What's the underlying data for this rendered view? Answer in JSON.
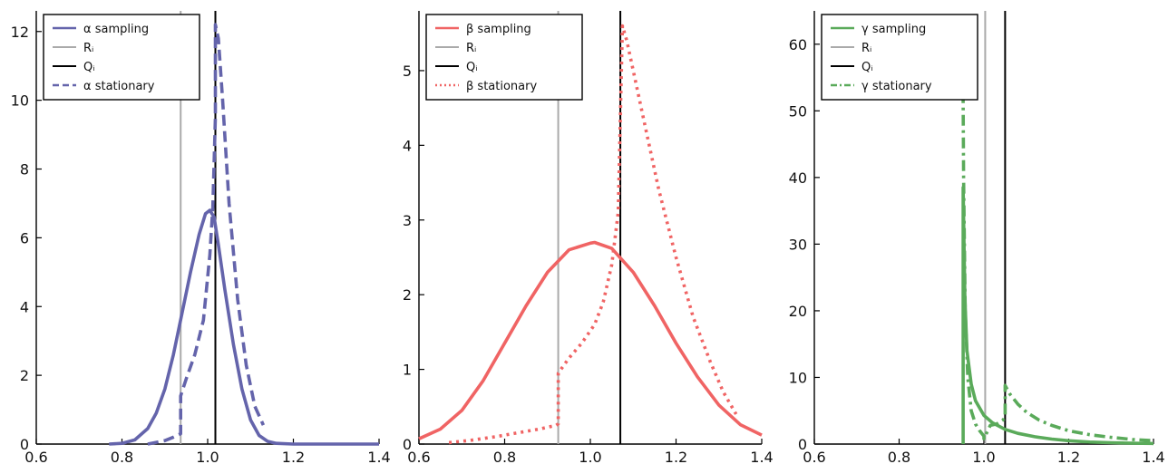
{
  "chart_data": [
    {
      "type": "line",
      "title": "",
      "xlabel": "",
      "ylabel": "",
      "xlim": [
        0.6,
        1.4
      ],
      "ylim": [
        0,
        12.6
      ],
      "xticks": [
        0.6,
        0.8,
        1.0,
        1.2,
        1.4
      ],
      "xtick_labels": [
        "0.6",
        "0.8",
        "1.0",
        "1.2",
        "1.4"
      ],
      "yticks": [
        0,
        2,
        4,
        6,
        8,
        10,
        12
      ],
      "ytick_labels": [
        "0",
        "2",
        "4",
        "6",
        "8",
        "10",
        "12"
      ],
      "grid": false,
      "legend_position": "top-left",
      "series": [
        {
          "name": "α sampling",
          "style": "solid",
          "color": "#6464ab",
          "x": [
            0.77,
            0.8,
            0.83,
            0.86,
            0.88,
            0.9,
            0.92,
            0.94,
            0.96,
            0.98,
            0.995,
            1.005,
            1.015,
            1.025,
            1.04,
            1.06,
            1.08,
            1.1,
            1.12,
            1.14,
            1.16,
            1.2,
            1.3,
            1.4
          ],
          "y": [
            0.0,
            0.02,
            0.12,
            0.45,
            0.9,
            1.6,
            2.6,
            3.8,
            5.0,
            6.1,
            6.7,
            6.8,
            6.6,
            5.8,
            4.5,
            2.9,
            1.6,
            0.7,
            0.25,
            0.08,
            0.02,
            0.0,
            0.0,
            0.0
          ]
        },
        {
          "name": "Rᵢ",
          "style": "vline",
          "color": "#aaaaaa",
          "x": [
            0.937
          ]
        },
        {
          "name": "Qᵢ",
          "style": "vline",
          "color": "#000000",
          "x": [
            1.018
          ]
        },
        {
          "name": "α stationary",
          "style": "dashed",
          "color": "#6464ab",
          "x": [
            0.86,
            0.88,
            0.9,
            0.92,
            0.937,
            0.937,
            0.95,
            0.97,
            0.99,
            1.005,
            1.012,
            1.018,
            1.018,
            1.025,
            1.035,
            1.05,
            1.07,
            1.09,
            1.11,
            1.13
          ],
          "y": [
            0.0,
            0.05,
            0.1,
            0.2,
            0.3,
            1.4,
            1.9,
            2.6,
            3.6,
            5.5,
            6.9,
            9.5,
            12.2,
            11.8,
            10.0,
            7.0,
            4.2,
            2.3,
            1.1,
            0.55
          ]
        }
      ]
    },
    {
      "type": "line",
      "title": "",
      "xlabel": "",
      "ylabel": "",
      "xlim": [
        0.6,
        1.4
      ],
      "ylim": [
        0,
        5.8
      ],
      "xticks": [
        0.6,
        0.8,
        1.0,
        1.2,
        1.4
      ],
      "xtick_labels": [
        "0.6",
        "0.8",
        "1.0",
        "1.2",
        "1.4"
      ],
      "yticks": [
        0,
        1,
        2,
        3,
        4,
        5
      ],
      "ytick_labels": [
        "0",
        "1",
        "2",
        "3",
        "4",
        "5"
      ],
      "grid": false,
      "legend_position": "top-left",
      "series": [
        {
          "name": "β sampling",
          "style": "solid",
          "color": "#f06464",
          "x": [
            0.6,
            0.65,
            0.7,
            0.75,
            0.8,
            0.85,
            0.9,
            0.95,
            1.0,
            1.01,
            1.05,
            1.1,
            1.15,
            1.2,
            1.25,
            1.3,
            1.35,
            1.4
          ],
          "y": [
            0.07,
            0.2,
            0.45,
            0.85,
            1.35,
            1.85,
            2.3,
            2.6,
            2.69,
            2.7,
            2.62,
            2.3,
            1.85,
            1.35,
            0.9,
            0.52,
            0.26,
            0.12
          ]
        },
        {
          "name": "Rᵢ",
          "style": "vline",
          "color": "#aaaaaa",
          "x": [
            0.925
          ]
        },
        {
          "name": "Qᵢ",
          "style": "vline",
          "color": "#000000",
          "x": [
            1.07
          ]
        },
        {
          "name": "β stationary",
          "style": "dotted",
          "color": "#f06464",
          "x": [
            0.67,
            0.72,
            0.78,
            0.84,
            0.88,
            0.92,
            0.925,
            0.925,
            0.95,
            0.98,
            1.01,
            1.03,
            1.05,
            1.065,
            1.075,
            1.085,
            1.1,
            1.13,
            1.16,
            1.2,
            1.24,
            1.28,
            1.31,
            1.34
          ],
          "y": [
            0.02,
            0.05,
            0.1,
            0.16,
            0.2,
            0.25,
            0.27,
            0.95,
            1.15,
            1.35,
            1.6,
            1.9,
            2.4,
            3.1,
            5.6,
            5.4,
            5.0,
            4.2,
            3.4,
            2.5,
            1.7,
            1.1,
            0.7,
            0.4
          ]
        }
      ]
    },
    {
      "type": "line",
      "title": "",
      "xlabel": "",
      "ylabel": "",
      "xlim": [
        0.6,
        1.4
      ],
      "ylim": [
        0,
        65
      ],
      "xticks": [
        0.6,
        0.8,
        1.0,
        1.2,
        1.4
      ],
      "xtick_labels": [
        "0.6",
        "0.8",
        "1.0",
        "1.2",
        "1.4"
      ],
      "yticks": [
        0,
        10,
        20,
        30,
        40,
        50,
        60
      ],
      "ytick_labels": [
        "0",
        "10",
        "20",
        "30",
        "40",
        "50",
        "60"
      ],
      "grid": false,
      "legend_position": "top-left",
      "series": [
        {
          "name": "γ sampling",
          "style": "solid",
          "color": "#5aaa5a",
          "x": [
            0.951,
            0.951,
            0.955,
            0.96,
            0.97,
            0.98,
            1.0,
            1.02,
            1.05,
            1.08,
            1.12,
            1.16,
            1.2,
            1.25,
            1.3,
            1.35,
            1.4
          ],
          "y": [
            0,
            38.5,
            22,
            14,
            9,
            6.5,
            4.3,
            3.2,
            2.2,
            1.6,
            1.1,
            0.75,
            0.5,
            0.3,
            0.2,
            0.12,
            0.08
          ]
        },
        {
          "name": "Rᵢ",
          "style": "vline",
          "color": "#aaaaaa",
          "x": [
            1.003
          ]
        },
        {
          "name": "Qᵢ",
          "style": "vline",
          "color": "#000000",
          "x": [
            1.05
          ]
        },
        {
          "name": "γ stationary",
          "style": "dashdot",
          "color": "#5aaa5a",
          "x": [
            0.95,
            0.952,
            0.956,
            0.962,
            0.97,
            0.98,
            0.99,
            1.0,
            1.0,
            1.015,
            1.03,
            1.045,
            1.05,
            1.05,
            1.06,
            1.08,
            1.1,
            1.13,
            1.16,
            1.2,
            1.25,
            1.3,
            1.35,
            1.4
          ],
          "y": [
            63,
            40,
            20,
            10,
            5,
            3,
            2,
            1.2,
            0.8,
            2.8,
            3.0,
            3.6,
            4.0,
            8.8,
            7.6,
            6.0,
            4.8,
            3.6,
            2.8,
            2.0,
            1.4,
            1.0,
            0.7,
            0.5
          ]
        }
      ]
    }
  ]
}
